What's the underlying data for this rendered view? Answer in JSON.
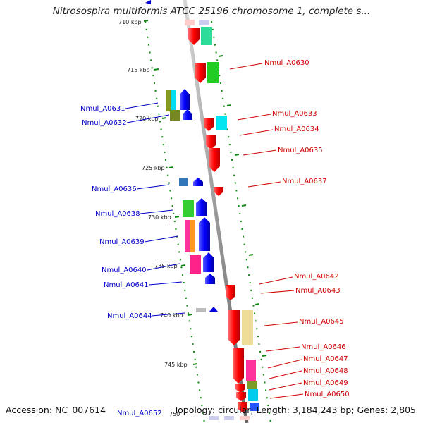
{
  "title": "Nitrosospira multiformis ATCC 25196 chromosome 1, complete s...",
  "footer": {
    "accession": "Accession: NC_007614",
    "topology": "Topology: circular; Length: 3,184,243 bp; Genes: 2,805"
  },
  "scale_labels": [
    "710 kbp",
    "715 kbp",
    "720 kbp",
    "725 kbp",
    "730 kbp",
    "735 kbp",
    "740 kbp",
    "745 kbp",
    "750"
  ],
  "genes_right": [
    "Nmul_A0630",
    "Nmul_A0633",
    "Nmul_A0634",
    "Nmul_A0635",
    "Nmul_A0637",
    "Nmul_A0642",
    "Nmul_A0643",
    "Nmul_A0645",
    "Nmul_A0646",
    "Nmul_A0647",
    "Nmul_A0648",
    "Nmul_A0649",
    "Nmul_A0650"
  ],
  "genes_left": [
    "Nmul_A0631",
    "Nmul_A0632",
    "Nmul_A0636",
    "Nmul_A0638",
    "Nmul_A0639",
    "Nmul_A0640",
    "Nmul_A0641",
    "Nmul_A0644",
    "Nmul_A0652"
  ],
  "colors": {
    "forward_strand": "#e00000",
    "reverse_strand": "#0000dd",
    "backbone": "#999999",
    "scale_ticks": "#118811",
    "label_right": "#d00000",
    "label_left": "#0000c8"
  }
}
